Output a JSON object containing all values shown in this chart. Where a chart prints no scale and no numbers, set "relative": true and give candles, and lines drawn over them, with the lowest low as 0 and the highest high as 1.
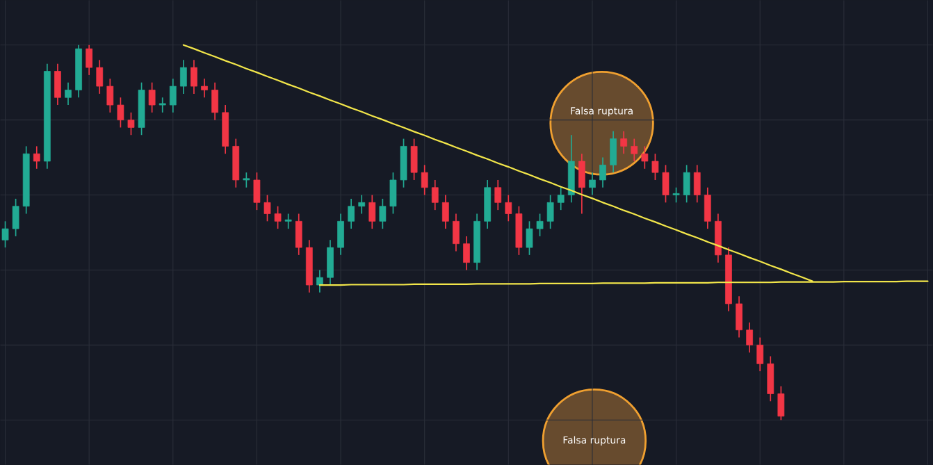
{
  "chart_data": {
    "type": "candlestick",
    "relative": true,
    "grid": true,
    "tick_labels": false,
    "categories": [
      null,
      null,
      null,
      null,
      null,
      null,
      null,
      null,
      null,
      null,
      null,
      null,
      null,
      null,
      null,
      null,
      null,
      null,
      null,
      null,
      null,
      null,
      null,
      null,
      null,
      null,
      null,
      null,
      null,
      null,
      null,
      null,
      null,
      null,
      null,
      null,
      null,
      null,
      null,
      null,
      null,
      null,
      null,
      null,
      null,
      null,
      null,
      null,
      null,
      null,
      null,
      null,
      null,
      null,
      null,
      null,
      null,
      null,
      null,
      null,
      null,
      null,
      null,
      null,
      null,
      null,
      null,
      null,
      null,
      null,
      null,
      null,
      null,
      null,
      null,
      null,
      null,
      null,
      null,
      null,
      null,
      null,
      null,
      null,
      null,
      null,
      null,
      null,
      null
    ],
    "ohlc": [
      [
        0.48,
        0.53,
        0.46,
        0.51
      ],
      [
        0.51,
        0.59,
        0.49,
        0.57
      ],
      [
        0.57,
        0.73,
        0.55,
        0.71
      ],
      [
        0.71,
        0.73,
        0.67,
        0.69
      ],
      [
        0.69,
        0.95,
        0.67,
        0.93
      ],
      [
        0.93,
        0.95,
        0.84,
        0.86
      ],
      [
        0.86,
        0.9,
        0.84,
        0.88
      ],
      [
        0.88,
        1.0,
        0.86,
        0.99
      ],
      [
        0.99,
        1.0,
        0.92,
        0.94
      ],
      [
        0.94,
        0.96,
        0.87,
        0.89
      ],
      [
        0.89,
        0.91,
        0.82,
        0.84
      ],
      [
        0.84,
        0.86,
        0.78,
        0.8
      ],
      [
        0.8,
        0.82,
        0.76,
        0.78
      ],
      [
        0.78,
        0.9,
        0.76,
        0.88
      ],
      [
        0.88,
        0.9,
        0.82,
        0.84
      ],
      [
        0.84,
        0.86,
        0.82,
        0.84
      ],
      [
        0.84,
        0.91,
        0.82,
        0.89
      ],
      [
        0.89,
        0.96,
        0.87,
        0.94
      ],
      [
        0.94,
        0.96,
        0.87,
        0.89
      ],
      [
        0.89,
        0.91,
        0.86,
        0.88
      ],
      [
        0.88,
        0.9,
        0.8,
        0.82
      ],
      [
        0.82,
        0.84,
        0.71,
        0.73
      ],
      [
        0.73,
        0.75,
        0.62,
        0.64
      ],
      [
        0.64,
        0.66,
        0.62,
        0.64
      ],
      [
        0.64,
        0.66,
        0.56,
        0.58
      ],
      [
        0.58,
        0.6,
        0.53,
        0.55
      ],
      [
        0.55,
        0.57,
        0.51,
        0.53
      ],
      [
        0.53,
        0.55,
        0.51,
        0.53
      ],
      [
        0.53,
        0.55,
        0.44,
        0.46
      ],
      [
        0.46,
        0.48,
        0.34,
        0.36
      ],
      [
        0.36,
        0.4,
        0.34,
        0.38
      ],
      [
        0.38,
        0.48,
        0.36,
        0.46
      ],
      [
        0.46,
        0.55,
        0.44,
        0.53
      ],
      [
        0.53,
        0.59,
        0.51,
        0.57
      ],
      [
        0.57,
        0.6,
        0.55,
        0.58
      ],
      [
        0.58,
        0.6,
        0.51,
        0.53
      ],
      [
        0.53,
        0.59,
        0.51,
        0.57
      ],
      [
        0.57,
        0.66,
        0.55,
        0.64
      ],
      [
        0.64,
        0.75,
        0.62,
        0.73
      ],
      [
        0.73,
        0.75,
        0.64,
        0.66
      ],
      [
        0.66,
        0.68,
        0.6,
        0.62
      ],
      [
        0.62,
        0.64,
        0.56,
        0.58
      ],
      [
        0.58,
        0.6,
        0.51,
        0.53
      ],
      [
        0.53,
        0.55,
        0.45,
        0.47
      ],
      [
        0.47,
        0.49,
        0.4,
        0.42
      ],
      [
        0.42,
        0.55,
        0.4,
        0.53
      ],
      [
        0.53,
        0.64,
        0.51,
        0.62
      ],
      [
        0.62,
        0.64,
        0.56,
        0.58
      ],
      [
        0.58,
        0.6,
        0.53,
        0.55
      ],
      [
        0.55,
        0.57,
        0.44,
        0.46
      ],
      [
        0.46,
        0.53,
        0.44,
        0.51
      ],
      [
        0.51,
        0.55,
        0.49,
        0.53
      ],
      [
        0.53,
        0.6,
        0.51,
        0.58
      ],
      [
        0.58,
        0.62,
        0.56,
        0.6
      ],
      [
        0.6,
        0.76,
        0.58,
        0.69
      ],
      [
        0.69,
        0.71,
        0.55,
        0.62
      ],
      [
        0.62,
        0.66,
        0.6,
        0.64
      ],
      [
        0.64,
        0.7,
        0.62,
        0.68
      ],
      [
        0.68,
        0.77,
        0.66,
        0.75
      ],
      [
        0.75,
        0.77,
        0.71,
        0.73
      ],
      [
        0.73,
        0.75,
        0.69,
        0.71
      ],
      [
        0.71,
        0.73,
        0.67,
        0.69
      ],
      [
        0.69,
        0.71,
        0.64,
        0.66
      ],
      [
        0.66,
        0.68,
        0.58,
        0.6
      ],
      [
        0.6,
        0.62,
        0.58,
        0.6
      ],
      [
        0.6,
        0.68,
        0.58,
        0.66
      ],
      [
        0.66,
        0.68,
        0.58,
        0.6
      ],
      [
        0.6,
        0.62,
        0.51,
        0.53
      ],
      [
        0.53,
        0.55,
        0.42,
        0.44
      ],
      [
        0.44,
        0.46,
        0.29,
        0.31
      ],
      [
        0.31,
        0.33,
        0.22,
        0.24
      ],
      [
        0.24,
        0.26,
        0.18,
        0.2
      ],
      [
        0.2,
        0.22,
        0.13,
        0.15
      ],
      [
        0.15,
        0.17,
        0.05,
        0.07
      ],
      [
        0.07,
        0.09,
        0.0,
        0.01
      ],
      null,
      null,
      null,
      null,
      null,
      null,
      null,
      null,
      null,
      null,
      null,
      null,
      null,
      null
    ],
    "series": [
      {
        "type": "line",
        "color": "#f2e64a",
        "values": [
          null,
          null,
          null,
          null,
          null,
          null,
          null,
          null,
          null,
          null,
          null,
          null,
          null,
          null,
          null,
          null,
          null,
          1.0,
          0.99,
          0.979,
          0.969,
          0.958,
          0.948,
          0.937,
          0.927,
          0.916,
          0.906,
          0.895,
          0.885,
          0.874,
          0.864,
          0.853,
          0.843,
          0.832,
          0.822,
          0.811,
          0.801,
          0.79,
          0.78,
          0.769,
          0.759,
          0.748,
          0.738,
          0.727,
          0.717,
          0.706,
          0.696,
          0.685,
          0.675,
          0.664,
          0.654,
          0.643,
          0.633,
          0.622,
          0.612,
          0.601,
          0.591,
          0.58,
          0.57,
          0.559,
          0.549,
          0.538,
          0.528,
          0.517,
          0.507,
          0.496,
          0.486,
          0.475,
          0.465,
          0.454,
          0.444,
          0.433,
          0.423,
          0.412,
          0.402,
          0.391,
          0.381,
          0.37,
          null,
          null,
          null,
          null,
          null,
          null,
          null,
          null,
          null,
          null,
          null
        ]
      },
      {
        "type": "line",
        "color": "#f2e64a",
        "values": [
          null,
          null,
          null,
          null,
          null,
          null,
          null,
          null,
          null,
          null,
          null,
          null,
          null,
          null,
          null,
          null,
          null,
          null,
          null,
          null,
          null,
          null,
          null,
          null,
          null,
          null,
          null,
          null,
          null,
          null,
          0.36,
          0.36,
          0.36,
          0.361,
          0.361,
          0.361,
          0.361,
          0.361,
          0.361,
          0.362,
          0.362,
          0.362,
          0.362,
          0.362,
          0.362,
          0.363,
          0.363,
          0.363,
          0.363,
          0.363,
          0.363,
          0.364,
          0.364,
          0.364,
          0.364,
          0.364,
          0.364,
          0.365,
          0.365,
          0.365,
          0.365,
          0.365,
          0.366,
          0.366,
          0.366,
          0.366,
          0.366,
          0.366,
          0.367,
          0.367,
          0.367,
          0.367,
          0.367,
          0.367,
          0.368,
          0.368,
          0.368,
          0.368,
          0.368,
          0.368,
          0.369,
          0.369,
          0.369,
          0.369,
          0.369,
          0.369,
          0.37,
          0.37,
          0.37
        ]
      }
    ],
    "annotations": [
      "Falsa ruptura",
      "Falsa ruptura"
    ]
  }
}
